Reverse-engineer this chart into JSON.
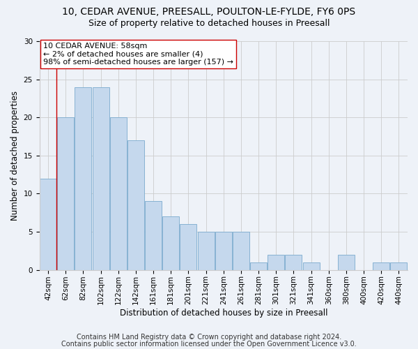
{
  "title_line1": "10, CEDAR AVENUE, PREESALL, POULTON-LE-FYLDE, FY6 0PS",
  "title_line2": "Size of property relative to detached houses in Preesall",
  "xlabel": "Distribution of detached houses by size in Preesall",
  "ylabel": "Number of detached properties",
  "categories": [
    "42sqm",
    "62sqm",
    "82sqm",
    "102sqm",
    "122sqm",
    "142sqm",
    "161sqm",
    "181sqm",
    "201sqm",
    "221sqm",
    "241sqm",
    "261sqm",
    "281sqm",
    "301sqm",
    "321sqm",
    "341sqm",
    "360sqm",
    "380sqm",
    "400sqm",
    "420sqm",
    "440sqm"
  ],
  "values": [
    12,
    20,
    24,
    24,
    20,
    17,
    9,
    7,
    6,
    5,
    5,
    5,
    1,
    2,
    2,
    1,
    0,
    2,
    0,
    1,
    1
  ],
  "bar_color": "#c5d8ed",
  "bar_edge_color": "#7aaace",
  "highlight_line_color": "#cc0000",
  "annotation_text": "10 CEDAR AVENUE: 58sqm\n← 2% of detached houses are smaller (4)\n98% of semi-detached houses are larger (157) →",
  "annotation_box_color": "#ffffff",
  "annotation_box_edge": "#cc0000",
  "ylim": [
    0,
    30
  ],
  "yticks": [
    0,
    5,
    10,
    15,
    20,
    25,
    30
  ],
  "grid_color": "#cccccc",
  "background_color": "#eef2f8",
  "footer_line1": "Contains HM Land Registry data © Crown copyright and database right 2024.",
  "footer_line2": "Contains public sector information licensed under the Open Government Licence v3.0.",
  "title_fontsize": 10,
  "subtitle_fontsize": 9,
  "axis_label_fontsize": 8.5,
  "tick_fontsize": 7.5,
  "annotation_fontsize": 8,
  "footer_fontsize": 7
}
